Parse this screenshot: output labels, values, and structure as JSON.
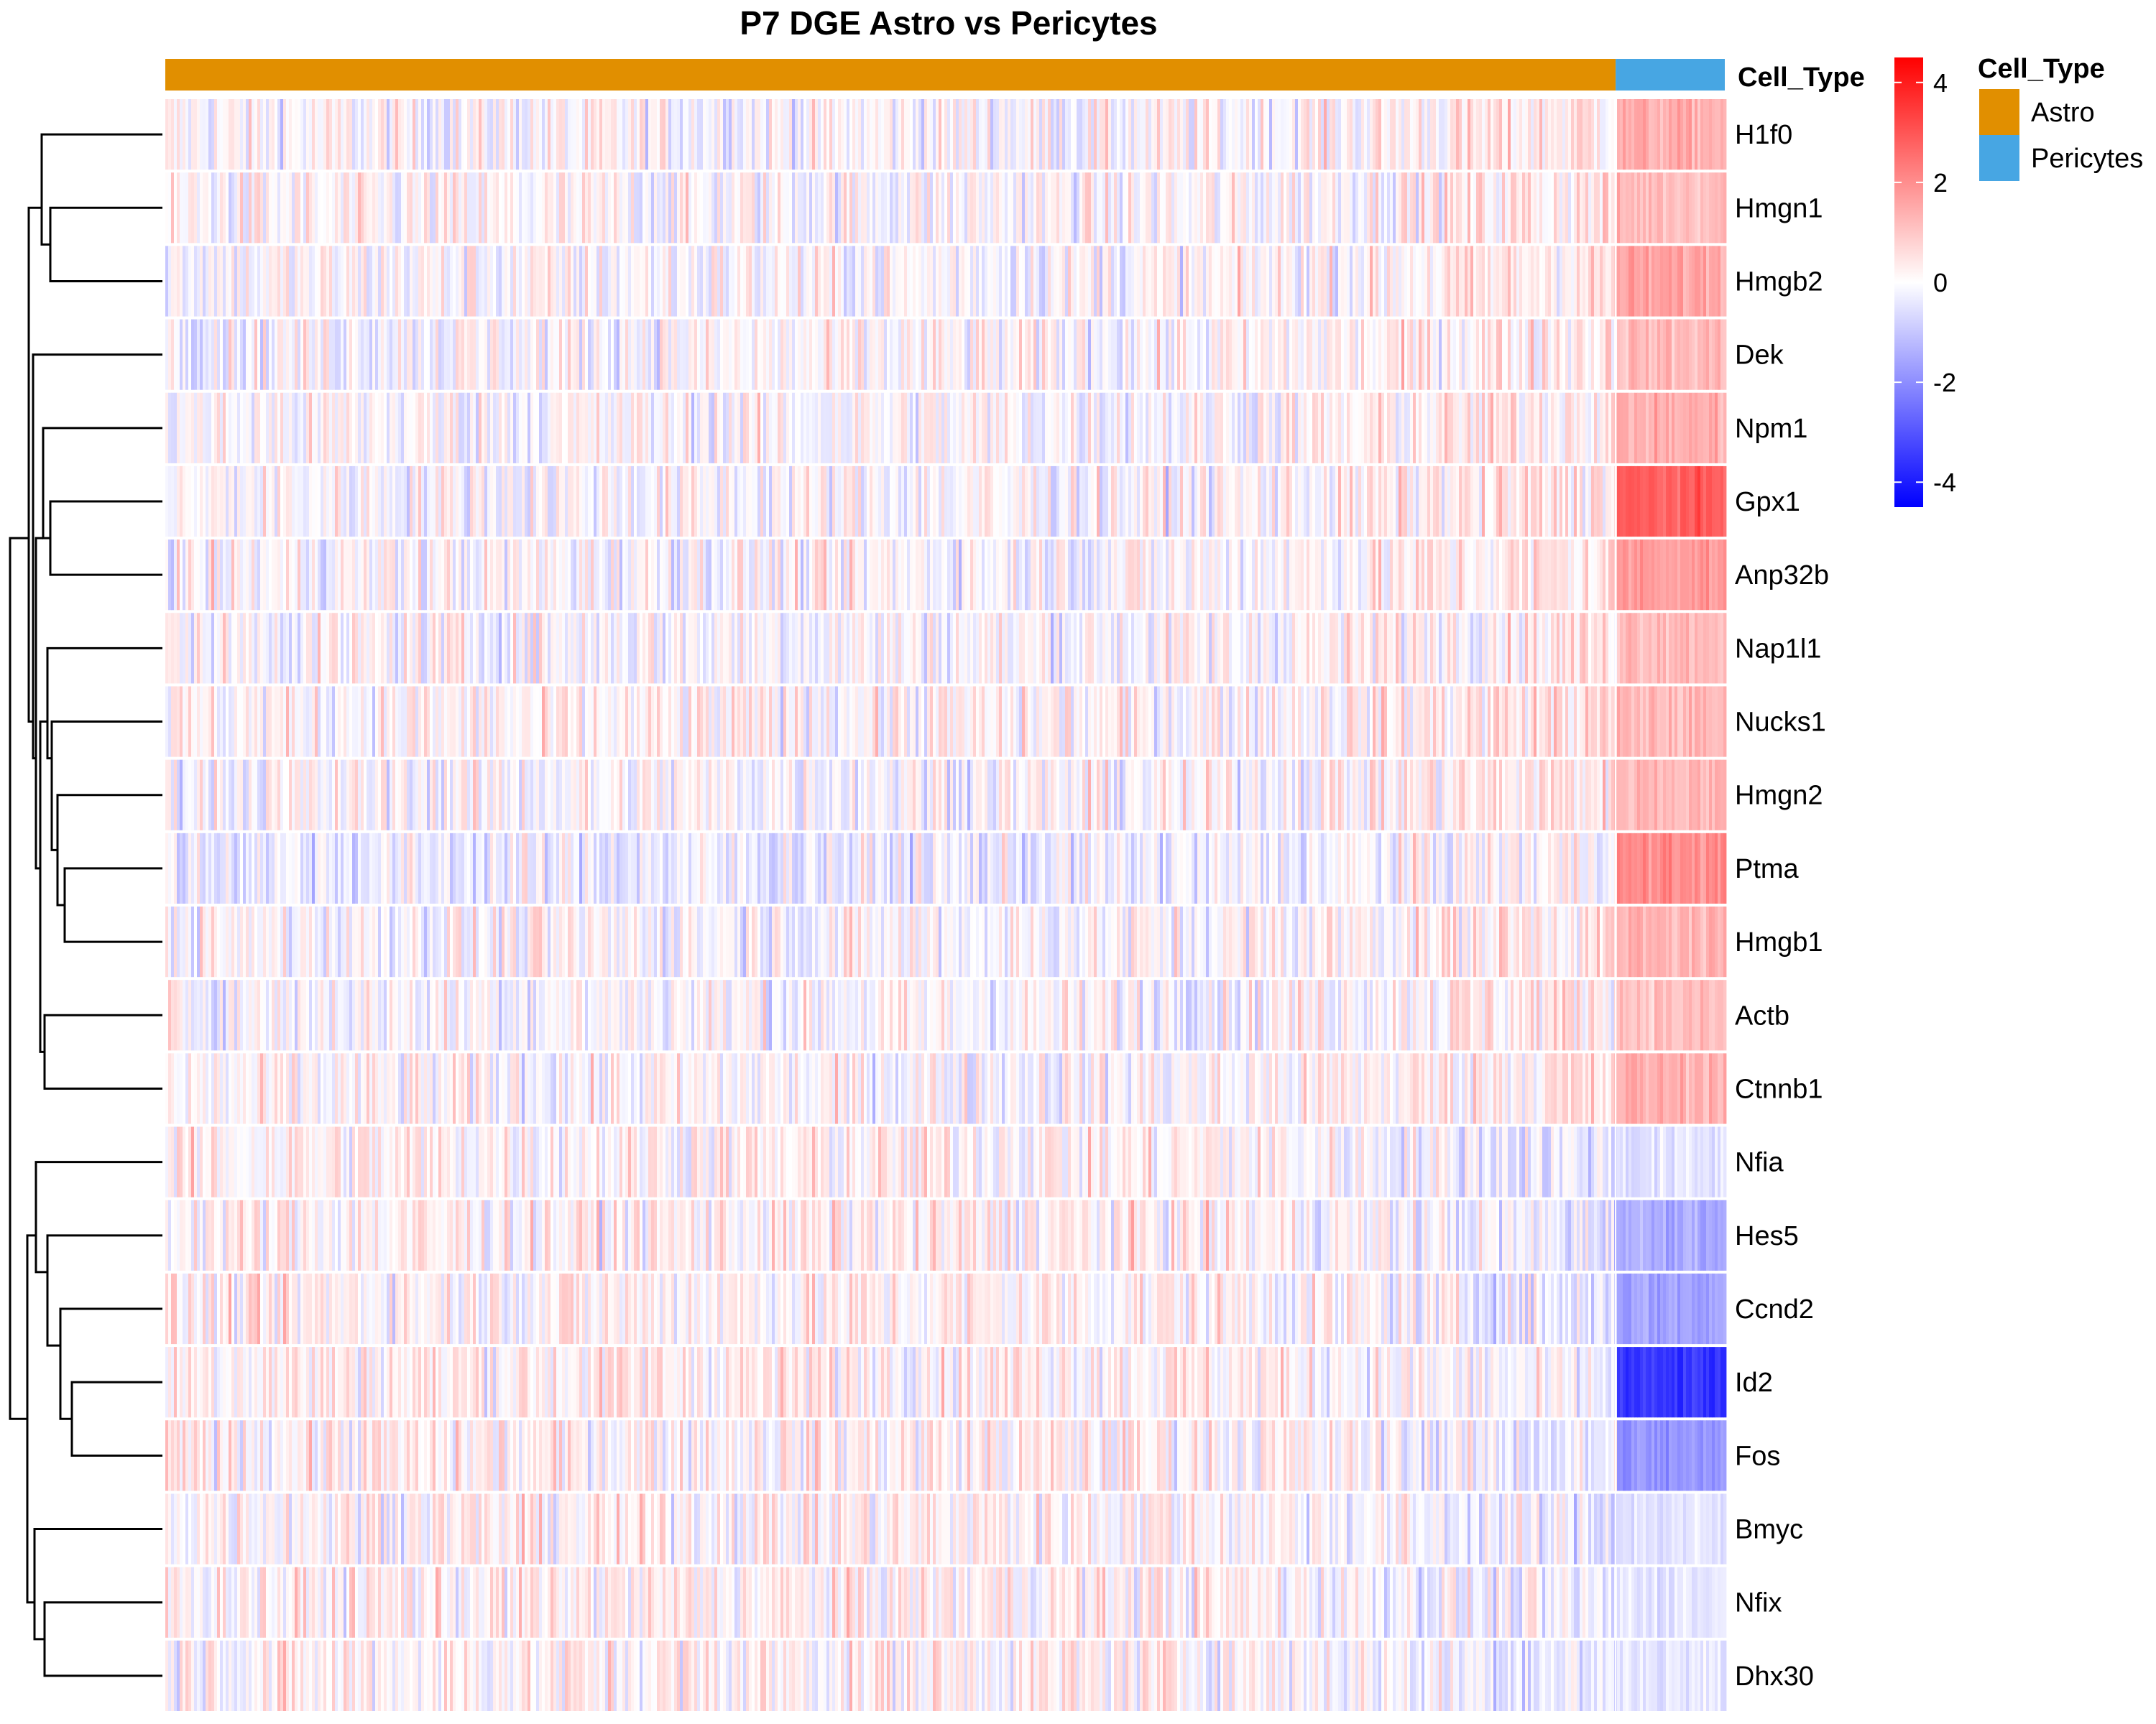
{
  "chart_data": {
    "type": "heatmap",
    "title": "P7 DGE Astro vs Pericytes",
    "rows": [
      "H1f0",
      "Hmgn1",
      "Hmgb2",
      "Dek",
      "Npm1",
      "Gpx1",
      "Anp32b",
      "Nap1l1",
      "Nucks1",
      "Hmgn2",
      "Ptma",
      "Hmgb1",
      "Actb",
      "Ctnnb1",
      "Nfia",
      "Hes5",
      "Ccnd2",
      "Id2",
      "Fos",
      "Bmyc",
      "Nfix",
      "Dhx30"
    ],
    "column_annotation": {
      "label": "Cell_Type",
      "groups": [
        {
          "name": "Astro",
          "color": "#E18F00",
          "fraction": 0.93
        },
        {
          "name": "Pericytes",
          "color": "#47A6E3",
          "fraction": 0.07
        }
      ]
    },
    "mean_expression_by_group": [
      {
        "gene": "H1f0",
        "Astro": 0.0,
        "Pericytes": 1.4
      },
      {
        "gene": "Hmgn1",
        "Astro": 0.0,
        "Pericytes": 1.2
      },
      {
        "gene": "Hmgb2",
        "Astro": 0.0,
        "Pericytes": 1.6
      },
      {
        "gene": "Dek",
        "Astro": 0.0,
        "Pericytes": 1.2
      },
      {
        "gene": "Npm1",
        "Astro": 0.0,
        "Pericytes": 1.4
      },
      {
        "gene": "Gpx1",
        "Astro": 0.0,
        "Pericytes": 2.8
      },
      {
        "gene": "Anp32b",
        "Astro": 0.0,
        "Pericytes": 1.8
      },
      {
        "gene": "Nap1l1",
        "Astro": 0.0,
        "Pericytes": 1.3
      },
      {
        "gene": "Nucks1",
        "Astro": 0.1,
        "Pericytes": 1.2
      },
      {
        "gene": "Hmgn2",
        "Astro": 0.0,
        "Pericytes": 1.3
      },
      {
        "gene": "Ptma",
        "Astro": -0.3,
        "Pericytes": 2.0
      },
      {
        "gene": "Hmgb1",
        "Astro": 0.0,
        "Pericytes": 1.3
      },
      {
        "gene": "Actb",
        "Astro": 0.0,
        "Pericytes": 1.1
      },
      {
        "gene": "Ctnnb1",
        "Astro": 0.0,
        "Pericytes": 1.4
      },
      {
        "gene": "Nfia",
        "Astro": 0.2,
        "Pericytes": -0.5
      },
      {
        "gene": "Hes5",
        "Astro": 0.2,
        "Pericytes": -1.4
      },
      {
        "gene": "Ccnd2",
        "Astro": 0.2,
        "Pericytes": -1.6
      },
      {
        "gene": "Id2",
        "Astro": 0.3,
        "Pericytes": -3.6
      },
      {
        "gene": "Fos",
        "Astro": 0.2,
        "Pericytes": -1.9
      },
      {
        "gene": "Bmyc",
        "Astro": 0.2,
        "Pericytes": -0.5
      },
      {
        "gene": "Nfix",
        "Astro": 0.2,
        "Pericytes": -0.4
      },
      {
        "gene": "Dhx30",
        "Astro": 0.2,
        "Pericytes": -0.4
      }
    ],
    "color_scale": {
      "min": -4.5,
      "max": 4.5,
      "stops": [
        {
          "value": -4.5,
          "color": "#0000FF"
        },
        {
          "value": 0,
          "color": "#FFFFFF"
        },
        {
          "value": 4.5,
          "color": "#FF0000"
        }
      ],
      "ticks": [
        4,
        2,
        0,
        -2,
        -4
      ],
      "tick_labels": [
        "4",
        "2",
        "0",
        "-2",
        "-4"
      ]
    },
    "row_dendrogram": "shown on left",
    "legend": {
      "title": "Cell_Type",
      "placement": "right",
      "entries": [
        {
          "label": "Astro",
          "color": "#E18F00"
        },
        {
          "label": "Pericytes",
          "color": "#47A6E3"
        }
      ]
    }
  }
}
